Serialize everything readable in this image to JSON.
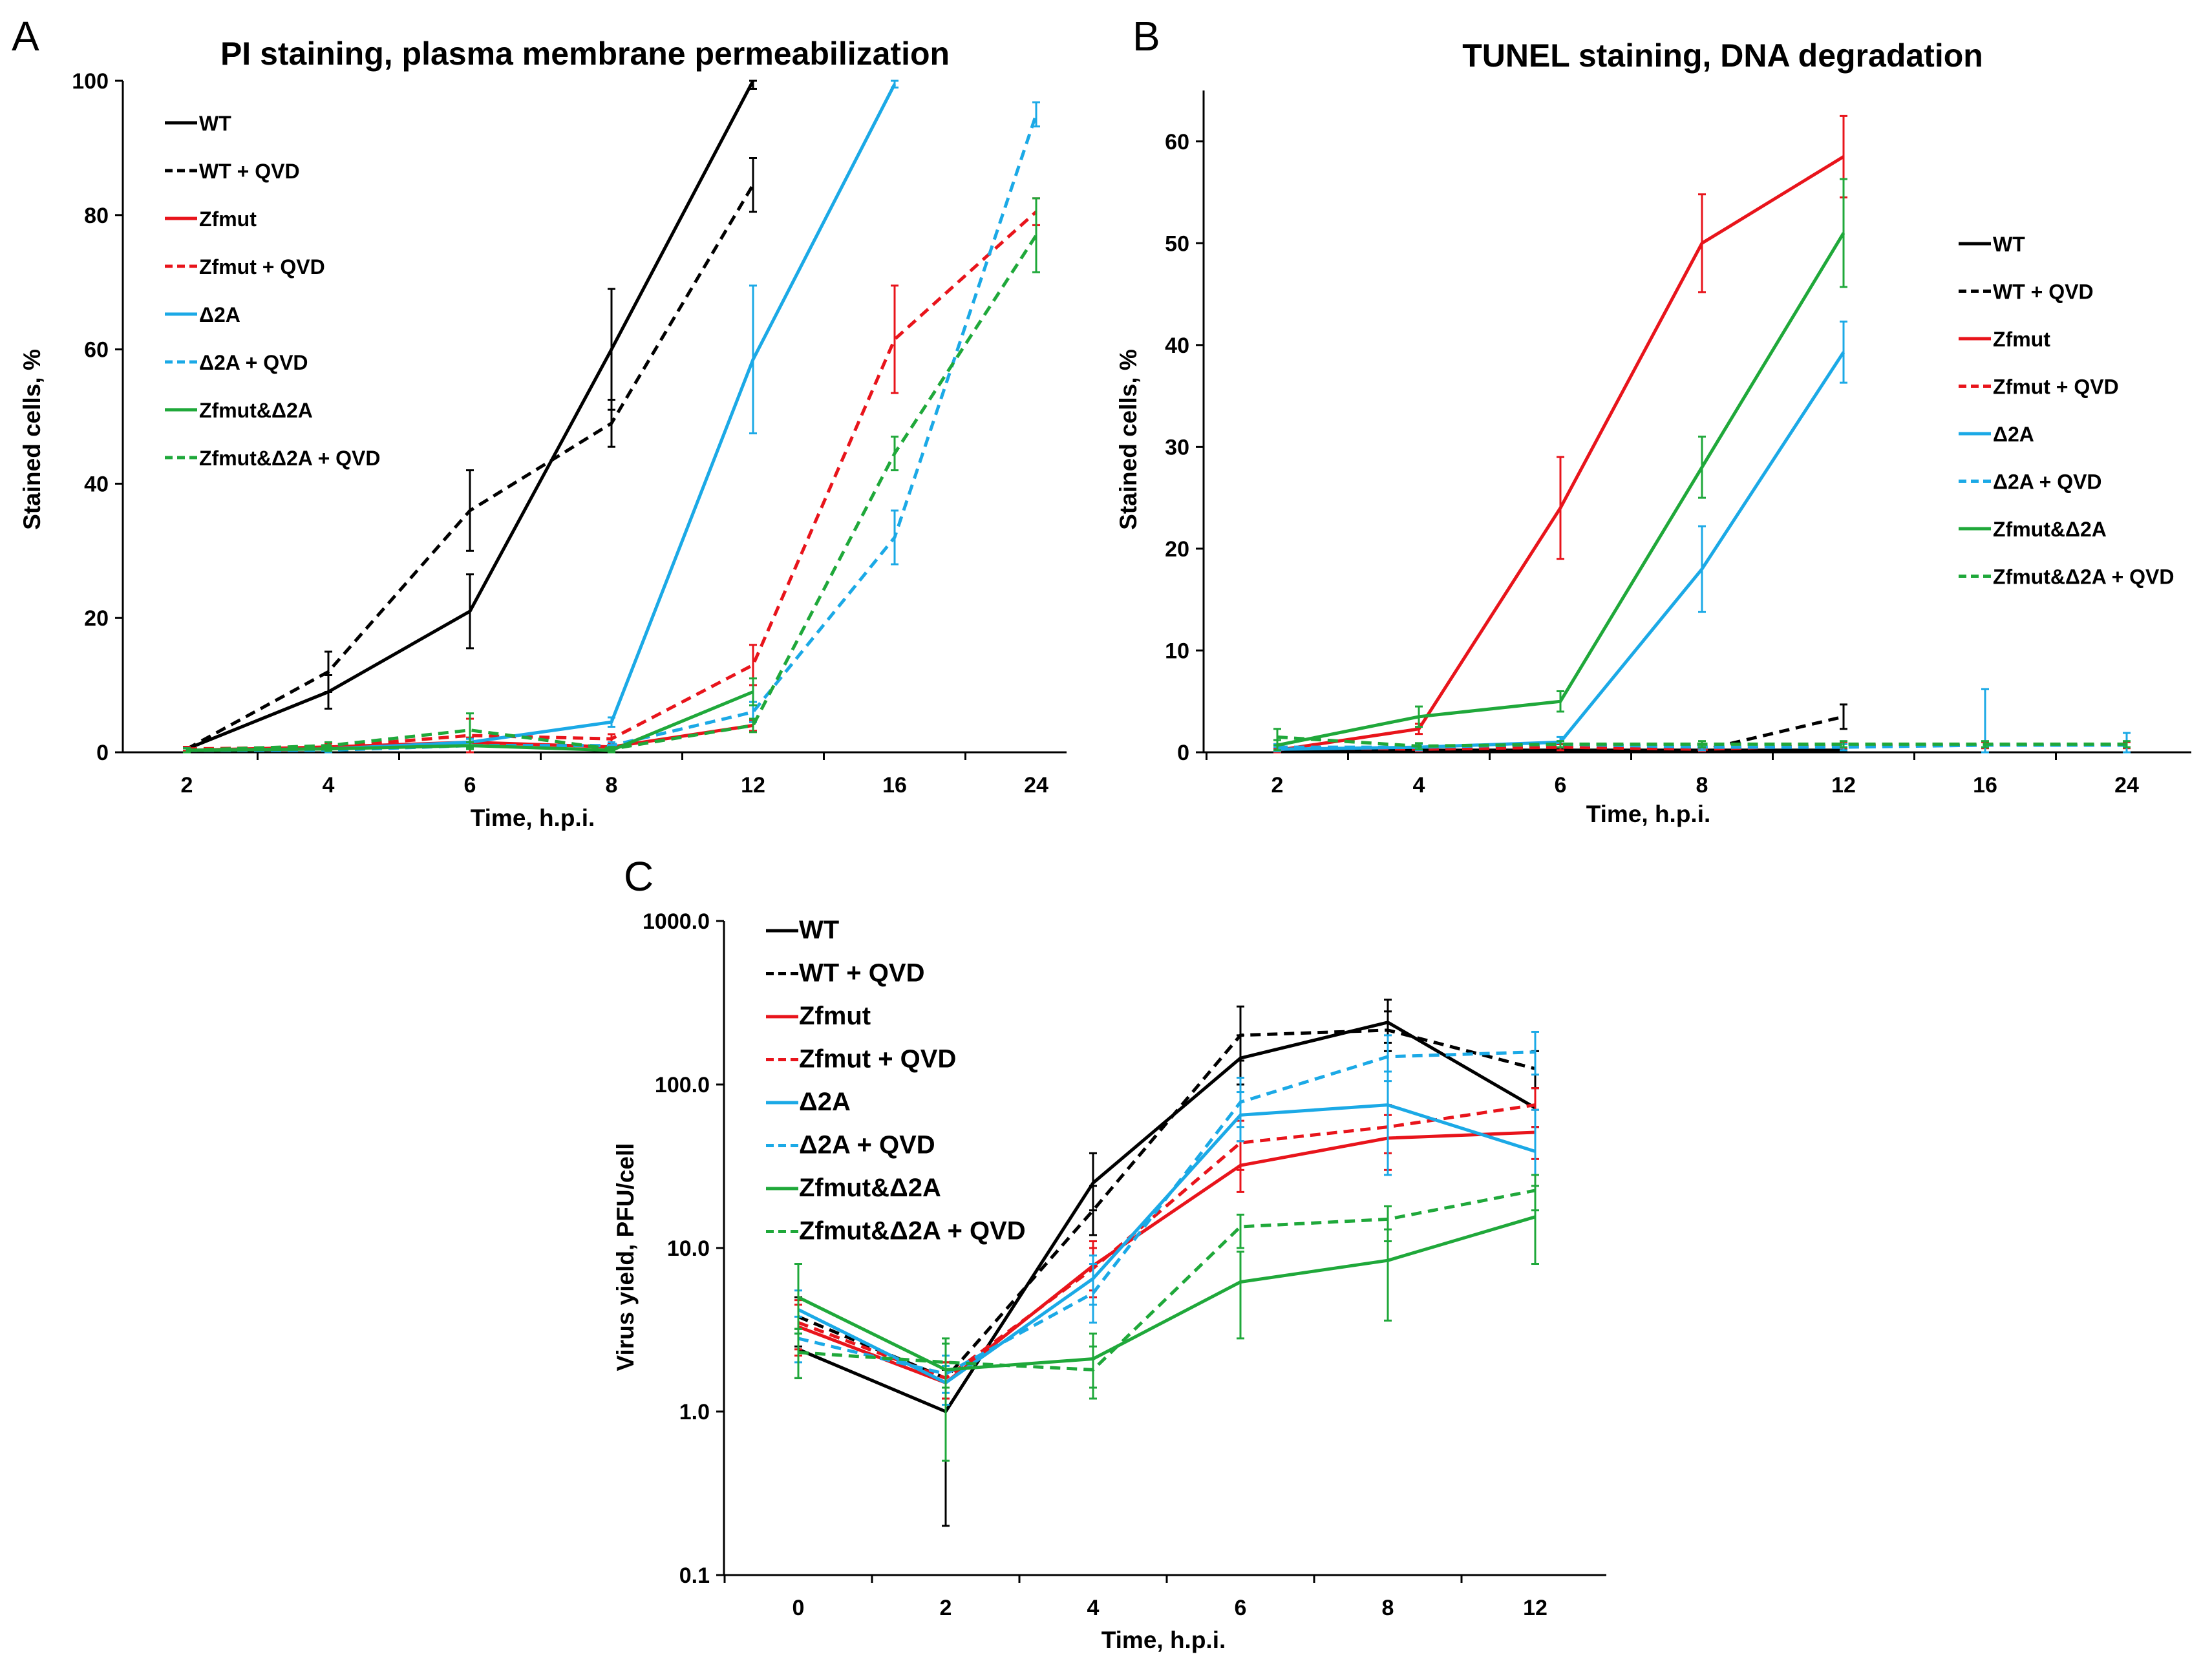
{
  "colors": {
    "WT": "#000000",
    "Zfmut": "#e8141b",
    "D2A": "#1ba9e6",
    "ZfD2A": "#1fa83a"
  },
  "chart_data": [
    {
      "panel": "A",
      "type": "line",
      "title": "PI staining, plasma membrane permeabilization",
      "xlabel": "Time, h.p.i.",
      "ylabel": "Stained cells, %",
      "categories": [
        "2",
        "4",
        "6",
        "8",
        "12",
        "16",
        "24"
      ],
      "ylim": [
        0,
        100
      ],
      "yticks": [
        "0",
        "20",
        "40",
        "60",
        "80",
        "100"
      ],
      "legend_position": "top-left",
      "series": [
        {
          "name": "WT",
          "color": "WT",
          "dashed": false,
          "values": [
            0.5,
            9,
            21,
            60,
            100,
            null,
            null
          ],
          "errors": [
            0.3,
            2.5,
            5.5,
            9,
            1.2,
            null,
            null
          ]
        },
        {
          "name": "WT + QVD",
          "color": "WT",
          "dashed": true,
          "values": [
            0.5,
            12,
            36,
            49,
            84.5,
            null,
            null
          ],
          "errors": [
            0.3,
            3,
            6,
            3.5,
            4,
            null,
            null
          ]
        },
        {
          "name": "Zfmut",
          "color": "Zfmut",
          "dashed": false,
          "values": [
            0.3,
            0.8,
            1.5,
            0.8,
            4,
            null,
            null
          ],
          "errors": [
            0.3,
            0.5,
            0.7,
            0.5,
            0.8,
            null,
            null
          ]
        },
        {
          "name": "Zfmut + QVD",
          "color": "Zfmut",
          "dashed": true,
          "values": [
            0.5,
            0.8,
            2.5,
            2,
            13,
            61.5,
            80.5
          ],
          "errors": [
            0.3,
            0.5,
            2.5,
            0.7,
            3,
            8,
            2
          ]
        },
        {
          "name": "Δ2A",
          "color": "D2A",
          "dashed": false,
          "values": [
            0.3,
            0.5,
            1.5,
            4.5,
            58.5,
            99.5,
            null
          ],
          "errors": [
            0.3,
            0.3,
            0.5,
            0.7,
            11,
            0.5,
            null
          ]
        },
        {
          "name": "Δ2A + QVD",
          "color": "D2A",
          "dashed": true,
          "values": [
            0.3,
            0.3,
            1,
            1,
            6,
            32,
            95
          ],
          "errors": [
            0.3,
            0.3,
            0.5,
            0.5,
            1.5,
            4,
            1.8
          ]
        },
        {
          "name": "Zfmut&Δ2A",
          "color": "ZfD2A",
          "dashed": false,
          "values": [
            0.3,
            0.5,
            1,
            0.3,
            9,
            null,
            null
          ],
          "errors": [
            0.3,
            0.3,
            0.5,
            0.3,
            2,
            null,
            null
          ]
        },
        {
          "name": "Zfmut&Δ2A + QVD",
          "color": "ZfD2A",
          "dashed": true,
          "values": [
            0.3,
            1,
            3.3,
            0.5,
            4,
            44.5,
            77
          ],
          "errors": [
            0.3,
            0.5,
            2.5,
            0.3,
            1,
            2.5,
            5.5
          ]
        }
      ]
    },
    {
      "panel": "B",
      "type": "line",
      "title": "TUNEL staining, DNA degradation",
      "xlabel": "Time, h.p.i.",
      "ylabel": "Stained cells, %",
      "categories": [
        "2",
        "4",
        "6",
        "8",
        "12",
        "16",
        "24"
      ],
      "ylim": [
        0,
        65
      ],
      "yticks": [
        "0",
        "10",
        "20",
        "30",
        "40",
        "50",
        "60"
      ],
      "legend_position": "right",
      "series": [
        {
          "name": "WT",
          "color": "WT",
          "dashed": false,
          "values": [
            0.2,
            0.2,
            0.2,
            0.2,
            0.2,
            null,
            null
          ],
          "errors": [
            0.1,
            0.1,
            0.1,
            0.1,
            0.1,
            null,
            null
          ]
        },
        {
          "name": "WT + QVD",
          "color": "WT",
          "dashed": true,
          "values": [
            0.5,
            0.3,
            0.5,
            0.2,
            3.5,
            null,
            null
          ],
          "errors": [
            0.3,
            0.2,
            0.3,
            0.1,
            1.2,
            null,
            null
          ]
        },
        {
          "name": "Zfmut",
          "color": "Zfmut",
          "dashed": false,
          "values": [
            0.2,
            2.3,
            24,
            50,
            58.5,
            null,
            null
          ],
          "errors": [
            0.2,
            0.5,
            5,
            4.8,
            4,
            null,
            null
          ]
        },
        {
          "name": "Zfmut + QVD",
          "color": "Zfmut",
          "dashed": true,
          "values": [
            0.5,
            0.3,
            0.5,
            0.3,
            0.7,
            0.7,
            0.7
          ],
          "errors": [
            0.3,
            0.2,
            0.3,
            0.2,
            0.3,
            0.3,
            0.3
          ]
        },
        {
          "name": "Δ2A",
          "color": "D2A",
          "dashed": false,
          "values": [
            0.3,
            0.5,
            1,
            18,
            39.3,
            null,
            null
          ],
          "errors": [
            0.2,
            0.3,
            0.5,
            4.2,
            3,
            null,
            null
          ]
        },
        {
          "name": "Δ2A + QVD",
          "color": "D2A",
          "dashed": true,
          "values": [
            0.5,
            0.5,
            0.8,
            0.5,
            0.5,
            0.7,
            0.7
          ],
          "errors": [
            0.3,
            0.3,
            0.3,
            0.3,
            0.3,
            5.5,
            1.2
          ]
        },
        {
          "name": "Zfmut&Δ2A",
          "color": "ZfD2A",
          "dashed": false,
          "values": [
            0.7,
            3.5,
            5,
            28,
            51,
            null,
            null
          ],
          "errors": [
            0.5,
            1,
            1,
            3,
            5.3,
            null,
            null
          ]
        },
        {
          "name": "Zfmut&Δ2A + QVD",
          "color": "ZfD2A",
          "dashed": true,
          "values": [
            1.5,
            0.6,
            0.8,
            0.8,
            0.8,
            0.8,
            0.8
          ],
          "errors": [
            0.8,
            0.3,
            0.3,
            0.3,
            0.3,
            0.3,
            0.3
          ]
        }
      ]
    },
    {
      "panel": "C",
      "type": "line",
      "title": "",
      "xlabel": "Time, h.p.i.",
      "ylabel": "Virus yield, PFU/cell",
      "categories": [
        "0",
        "2",
        "4",
        "6",
        "8",
        "12"
      ],
      "yscale": "log",
      "ylim": [
        0.1,
        1000
      ],
      "yticks": [
        "0.1",
        "1.0",
        "10.0",
        "100.0",
        "1000.0"
      ],
      "legend_position": "top-left",
      "series": [
        {
          "name": "WT",
          "color": "WT",
          "dashed": false,
          "values": [
            2.4,
            1.0,
            25,
            145,
            240,
            72
          ],
          "errors": [
            [
              1.6,
              3.2
            ],
            [
              0.2,
              1.8
            ],
            [
              17,
              38
            ],
            [
              100,
              200
            ],
            [
              180,
              330
            ],
            [
              55,
              95
            ]
          ]
        },
        {
          "name": "WT + QVD",
          "color": "WT",
          "dashed": true,
          "values": [
            3.8,
            1.6,
            17,
            200,
            215,
            125
          ],
          "errors": [
            [
              2.5,
              5
            ],
            [
              1.2,
              2
            ],
            [
              12,
              24
            ],
            [
              140,
              300
            ],
            [
              160,
              280
            ],
            [
              95,
              160
            ]
          ]
        },
        {
          "name": "Zfmut",
          "color": "Zfmut",
          "dashed": false,
          "values": [
            3.3,
            1.5,
            7.8,
            32,
            47,
            51
          ],
          "errors": [
            [
              2.2,
              4.5
            ],
            [
              1.1,
              1.9
            ],
            [
              5.5,
              11
            ],
            [
              22,
              45
            ],
            [
              30,
              65
            ],
            [
              35,
              70
            ]
          ]
        },
        {
          "name": "Zfmut + QVD",
          "color": "Zfmut",
          "dashed": true,
          "values": [
            3.5,
            1.6,
            7.5,
            44,
            55,
            75
          ],
          "errors": [
            [
              2.4,
              4.8
            ],
            [
              1.2,
              2
            ],
            [
              5,
              10
            ],
            [
              30,
              60
            ],
            [
              38,
              75
            ],
            [
              55,
              95
            ]
          ]
        },
        {
          "name": "Δ2A",
          "color": "D2A",
          "dashed": false,
          "values": [
            4.2,
            1.5,
            6.5,
            65,
            75,
            39
          ],
          "errors": [
            [
              3,
              5.5
            ],
            [
              1.1,
              1.9
            ],
            [
              4.5,
              9
            ],
            [
              45,
              90
            ],
            [
              28,
              120
            ],
            [
              8,
              70
            ]
          ]
        },
        {
          "name": "Δ2A + QVD",
          "color": "D2A",
          "dashed": true,
          "values": [
            2.8,
            1.7,
            5.3,
            78,
            148,
            158
          ],
          "errors": [
            [
              2,
              3.8
            ],
            [
              1.3,
              2.2
            ],
            [
              3.5,
              8
            ],
            [
              55,
              110
            ],
            [
              105,
              200
            ],
            [
              115,
              210
            ]
          ]
        },
        {
          "name": "Zfmut&Δ2A",
          "color": "ZfD2A",
          "dashed": false,
          "values": [
            5.0,
            1.8,
            2.1,
            6.2,
            8.4,
            15.5
          ],
          "errors": [
            [
              3,
              8
            ],
            [
              0.5,
              2.8
            ],
            [
              1.4,
              3
            ],
            [
              2.8,
              9.5
            ],
            [
              3.6,
              13
            ],
            [
              8,
              24
            ]
          ]
        },
        {
          "name": "Zfmut&Δ2A + QVD",
          "color": "ZfD2A",
          "dashed": true,
          "values": [
            2.3,
            2.0,
            1.8,
            13.5,
            15,
            22.5
          ],
          "errors": [
            [
              1.6,
              3.2
            ],
            [
              1.4,
              2.6
            ],
            [
              1.2,
              2.5
            ],
            [
              10,
              16
            ],
            [
              11,
              18
            ],
            [
              17,
              28
            ]
          ]
        }
      ]
    }
  ]
}
